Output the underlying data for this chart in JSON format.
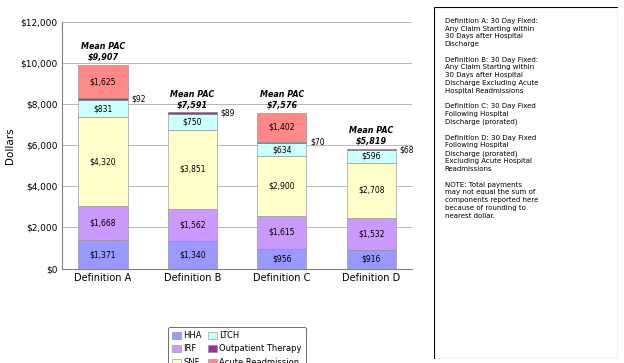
{
  "categories": [
    "Definition A",
    "Definition B",
    "Definition C",
    "Definition D"
  ],
  "mean_pac": [
    "$9,907",
    "$7,591",
    "$7,576",
    "$5,819"
  ],
  "segments": {
    "HHA": [
      1371,
      1340,
      956,
      916
    ],
    "IRF": [
      1668,
      1562,
      1615,
      1532
    ],
    "SNF": [
      4320,
      3851,
      2900,
      2708
    ],
    "LTCH": [
      831,
      750,
      634,
      596
    ],
    "Outpatient Therapy": [
      92,
      89,
      70,
      68
    ],
    "Acute Readmission": [
      1625,
      0,
      1402,
      0
    ]
  },
  "segment_labels": {
    "HHA": [
      "$1,371",
      "$1,340",
      "$956",
      "$916"
    ],
    "IRF": [
      "$1,668",
      "$1,562",
      "$1,615",
      "$1,532"
    ],
    "SNF": [
      "$4,320",
      "$3,851",
      "$2,900",
      "$2,708"
    ],
    "LTCH": [
      "$831",
      "$750",
      "$634",
      "$596"
    ],
    "Outpatient Therapy": [
      "$92",
      "$89",
      "$70",
      "$68"
    ],
    "Acute Readmission": [
      "$1,625",
      "",
      "$1,402",
      ""
    ]
  },
  "colors": {
    "HHA": "#9999FF",
    "IRF": "#CC99FF",
    "SNF": "#FFFFCC",
    "LTCH": "#CCFFFF",
    "Outpatient Therapy": "#993399",
    "Acute Readmission": "#FF8888"
  },
  "ylim": [
    0,
    12000
  ],
  "yticks": [
    0,
    2000,
    4000,
    6000,
    8000,
    10000,
    12000
  ],
  "ylabel": "Dollars",
  "bar_width": 0.55,
  "figsize": [
    6.24,
    3.63
  ],
  "dpi": 100
}
